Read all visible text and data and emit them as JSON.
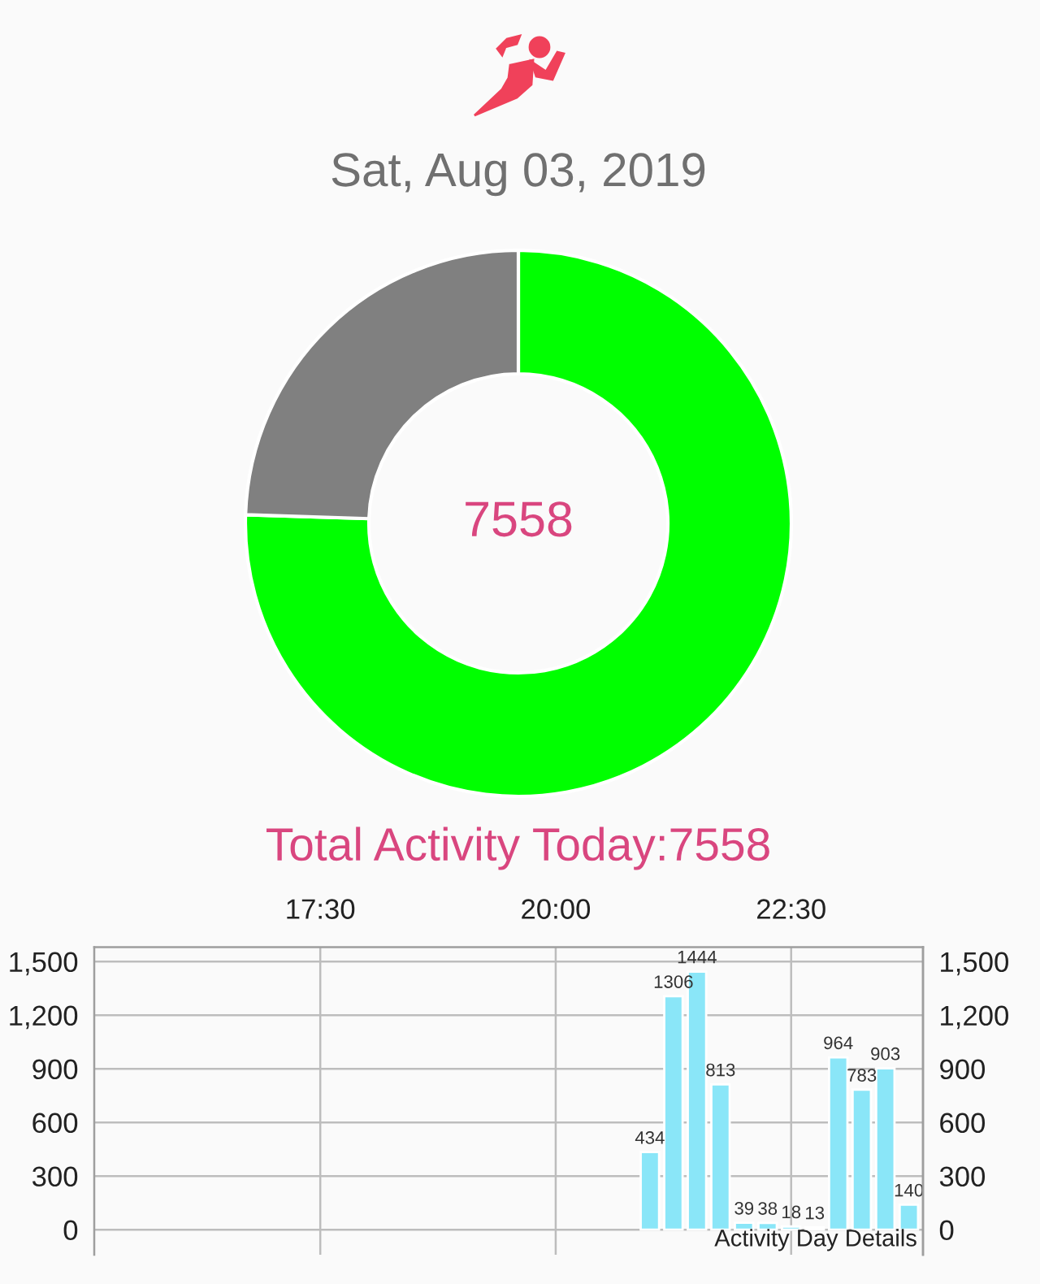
{
  "chart_data": [
    {
      "type": "donut",
      "title": "Sat, Aug 03, 2019",
      "categories": [
        null,
        null
      ],
      "values": [
        75.5,
        24.5
      ],
      "colors": [
        "#00ff00",
        "#808080"
      ],
      "annotations": [
        "7558",
        "Total Activity Today:7558"
      ]
    },
    {
      "type": "bar",
      "x": [
        21,
        21.25,
        21.5,
        21.75,
        22,
        22.25,
        22.5,
        22.75,
        23,
        23.25,
        23.5,
        23.75
      ],
      "values": [
        434,
        1306,
        1444,
        813,
        39,
        38,
        18,
        13,
        964,
        783,
        903,
        140
      ],
      "color": "#8ae6f8",
      "xlim": [
        15.1,
        23.9
      ],
      "xticks": [
        {
          "value": 17.5,
          "label": "17:30"
        },
        {
          "value": 20,
          "label": "20:00"
        },
        {
          "value": 22.5,
          "label": "22:30"
        }
      ],
      "ylim": [
        -140,
        1580
      ],
      "yticks": [
        0,
        300,
        600,
        900,
        {
          "value": 1200,
          "label": "1,200"
        },
        {
          "value": 1500,
          "label": "1,500"
        }
      ],
      "y2lim": [
        -140,
        1580
      ],
      "y2ticks": [
        0,
        300,
        600,
        900,
        {
          "value": 1200,
          "label": "1,200"
        },
        {
          "value": 1500,
          "label": "1,500"
        }
      ],
      "grid": true,
      "data_labels": true,
      "annotations": [
        "Activity Day Details"
      ]
    }
  ]
}
